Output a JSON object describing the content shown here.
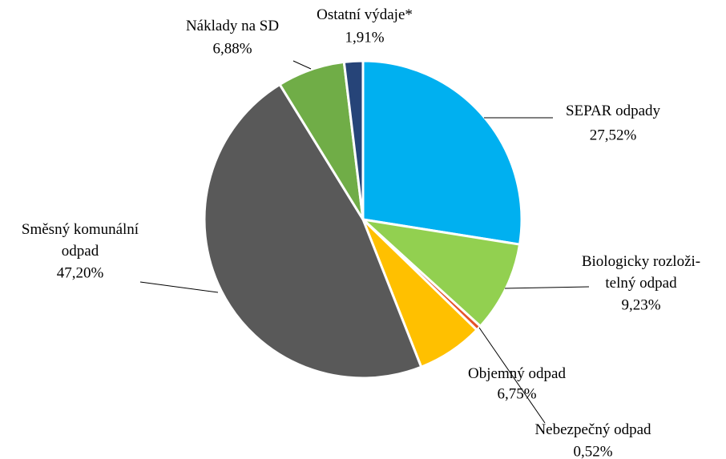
{
  "chart_data": {
    "type": "pie",
    "categories": [
      "SEPAR odpady",
      "Biologicky rozloži-\ntelný odpad",
      "Nebezpečný odpad",
      "Objemný odpad",
      "Směsný komunální\nodpad",
      "Náklady na SD",
      "Ostatní výdaje*"
    ],
    "values": [
      27.52,
      9.23,
      0.52,
      6.75,
      47.2,
      6.88,
      1.91
    ],
    "value_labels": [
      "27,52%",
      "9,23%",
      "0,52%",
      "6,75%",
      "47,20%",
      "6,88%",
      "1,91%"
    ],
    "colors": [
      "#00b0f0",
      "#92d050",
      "#e5542a",
      "#ffc000",
      "#595959",
      "#70ad47",
      "#264478"
    ]
  }
}
